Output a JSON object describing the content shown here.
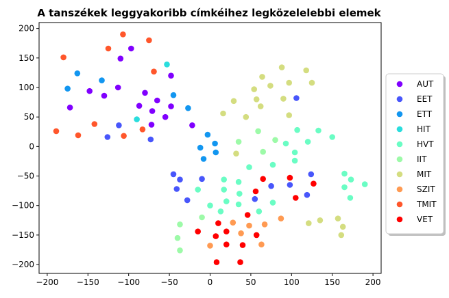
{
  "chart_data": {
    "type": "scatter",
    "title": "A tanszékek leggyakoribb címkéihez legközelelebbi elemek",
    "xlabel": "",
    "ylabel": "",
    "xlim": [
      -210,
      210
    ],
    "ylim": [
      -215,
      210
    ],
    "xticks": [
      -200,
      -150,
      -100,
      -50,
      0,
      50,
      100,
      150,
      200
    ],
    "yticks": [
      -200,
      -150,
      -100,
      -50,
      0,
      50,
      100,
      150,
      200
    ],
    "grid": false,
    "legend_position": "right",
    "series": [
      {
        "name": "AUT",
        "color": "#8000ff",
        "points": [
          [
            -97,
            166
          ],
          [
            -110,
            149
          ],
          [
            -113,
            100
          ],
          [
            -48,
            120
          ],
          [
            -148,
            94
          ],
          [
            -130,
            86
          ],
          [
            -80,
            91
          ],
          [
            -172,
            66
          ],
          [
            -87,
            69
          ],
          [
            -71,
            60
          ],
          [
            -65,
            78
          ],
          [
            -48,
            68
          ],
          [
            -22,
            36
          ],
          [
            -55,
            50
          ],
          [
            -72,
            37
          ]
        ]
      },
      {
        "name": "EET",
        "color": "#4856fb",
        "points": [
          [
            -112,
            36
          ],
          [
            -126,
            16
          ],
          [
            -73,
            12
          ],
          [
            -45,
            -47
          ],
          [
            -37,
            -56
          ],
          [
            -41,
            -72
          ],
          [
            -28,
            -91
          ],
          [
            -10,
            -55
          ],
          [
            124,
            -47
          ],
          [
            119,
            -82
          ],
          [
            98,
            -65
          ],
          [
            55,
            -89
          ],
          [
            75,
            -67
          ],
          [
            106,
            82
          ]
        ]
      },
      {
        "name": "ETT",
        "color": "#1296f0",
        "points": [
          [
            -163,
            124
          ],
          [
            -175,
            98
          ],
          [
            -133,
            112
          ],
          [
            -45,
            87
          ],
          [
            -27,
            65
          ],
          [
            -3,
            20
          ],
          [
            -12,
            -2
          ],
          [
            6,
            5
          ],
          [
            -8,
            -21
          ],
          [
            7,
            -10
          ]
        ]
      },
      {
        "name": "HIT",
        "color": "#2adddd",
        "points": [
          [
            -53,
            139
          ],
          [
            -90,
            46
          ]
        ]
      },
      {
        "name": "HVT",
        "color": "#6afdc4",
        "points": [
          [
            107,
            28
          ],
          [
            133,
            27
          ],
          [
            150,
            16
          ],
          [
            120,
            8
          ],
          [
            93,
            5
          ],
          [
            104,
            -10
          ],
          [
            104,
            -24
          ],
          [
            77,
            -31
          ],
          [
            48,
            -35
          ],
          [
            17,
            -56
          ],
          [
            35,
            -60
          ],
          [
            17,
            -73
          ],
          [
            36,
            -80
          ],
          [
            -15,
            -73
          ],
          [
            20,
            -93
          ],
          [
            0,
            -100
          ],
          [
            35,
            -98
          ],
          [
            77,
            -95
          ],
          [
            13,
            -110
          ],
          [
            60,
            -110
          ],
          [
            165,
            -46
          ],
          [
            165,
            -69
          ],
          [
            173,
            -56
          ],
          [
            172,
            -87
          ],
          [
            190,
            -64
          ]
        ]
      },
      {
        "name": "IIT",
        "color": "#9dfaa8",
        "points": [
          [
            35,
            8
          ],
          [
            59,
            26
          ],
          [
            80,
            11
          ],
          [
            65,
            -9
          ],
          [
            -10,
            -120
          ],
          [
            -37,
            -132
          ],
          [
            -40,
            -155
          ],
          [
            -37,
            -176
          ]
        ]
      },
      {
        "name": "MIT",
        "color": "#d4dd80",
        "points": [
          [
            64,
            118
          ],
          [
            74,
            103
          ],
          [
            88,
            134
          ],
          [
            54,
            97
          ],
          [
            97,
            108
          ],
          [
            118,
            129
          ],
          [
            125,
            108
          ],
          [
            29,
            77
          ],
          [
            57,
            80
          ],
          [
            90,
            81
          ],
          [
            62,
            68
          ],
          [
            44,
            50
          ],
          [
            16,
            56
          ],
          [
            97,
            53
          ],
          [
            32,
            -12
          ],
          [
            135,
            -125
          ],
          [
            121,
            -130
          ],
          [
            157,
            -122
          ],
          [
            163,
            -136
          ],
          [
            161,
            -150
          ]
        ]
      },
      {
        "name": "SZIT",
        "color": "#ff9a52",
        "points": [
          [
            28,
            -129
          ],
          [
            48,
            -134
          ],
          [
            67,
            -132
          ],
          [
            87,
            -122
          ],
          [
            38,
            -147
          ],
          [
            0,
            -168
          ],
          [
            63,
            -166
          ]
        ]
      },
      {
        "name": "TMIT",
        "color": "#ff562b",
        "points": [
          [
            -180,
            151
          ],
          [
            -125,
            166
          ],
          [
            -107,
            190
          ],
          [
            -75,
            180
          ],
          [
            -69,
            127
          ],
          [
            -162,
            19
          ],
          [
            -142,
            38
          ],
          [
            -106,
            18
          ],
          [
            -83,
            29
          ],
          [
            -189,
            26
          ]
        ]
      },
      {
        "name": "VET",
        "color": "#ff0000",
        "points": [
          [
            -15,
            -144
          ],
          [
            10,
            -130
          ],
          [
            20,
            -144
          ],
          [
            46,
            -116
          ],
          [
            57,
            -150
          ],
          [
            7,
            -152
          ],
          [
            20,
            -166
          ],
          [
            40,
            -167
          ],
          [
            8,
            -196
          ],
          [
            37,
            -196
          ],
          [
            56,
            -76
          ],
          [
            65,
            -55
          ],
          [
            98,
            -53
          ],
          [
            105,
            -87
          ],
          [
            127,
            -63
          ]
        ]
      }
    ]
  }
}
